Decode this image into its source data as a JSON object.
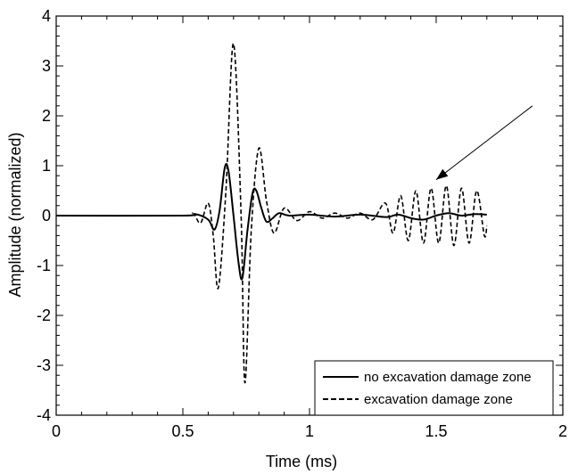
{
  "chart_data": {
    "type": "line",
    "xlabel": "Time (ms)",
    "ylabel": "Amplitude (normalized)",
    "xlim": [
      0,
      2
    ],
    "ylim": [
      -4,
      4
    ],
    "xticks": [
      0,
      0.5,
      1,
      1.5,
      2
    ],
    "xtick_labels": [
      "0",
      "0.5",
      "1",
      "1.5",
      "2"
    ],
    "yticks": [
      -4,
      -3,
      -2,
      -1,
      0,
      1,
      2,
      3,
      4
    ],
    "ytick_labels": [
      "-4",
      "-3",
      "-2",
      "-1",
      "0",
      "1",
      "2",
      "3",
      "4"
    ],
    "grid": false,
    "legend_position": "bottom-right",
    "series": [
      {
        "name": "no excavation damage zone",
        "style": "solid",
        "color": "#000000",
        "x": [
          0,
          0.5,
          0.55,
          0.6,
          0.625,
          0.645,
          0.665,
          0.68,
          0.7,
          0.72,
          0.735,
          0.755,
          0.775,
          0.79,
          0.81,
          0.83,
          0.855,
          0.88,
          0.92,
          1.0,
          1.1,
          1.2,
          1.3,
          1.35,
          1.4,
          1.45,
          1.5,
          1.55,
          1.6,
          1.65,
          1.7
        ],
        "y": [
          0,
          0,
          0.03,
          -0.08,
          -0.28,
          0.1,
          0.95,
          0.9,
          0.0,
          -0.95,
          -1.25,
          -0.3,
          0.45,
          0.5,
          0.15,
          -0.12,
          -0.05,
          0.05,
          0.0,
          0.02,
          -0.02,
          0.02,
          -0.03,
          0.02,
          -0.05,
          -0.08,
          0.0,
          0.05,
          0.0,
          0.03,
          0.02
        ]
      },
      {
        "name": "excavation damage zone",
        "style": "dashed",
        "color": "#000000",
        "x": [
          0,
          0.5,
          0.54,
          0.57,
          0.6,
          0.62,
          0.64,
          0.67,
          0.7,
          0.73,
          0.745,
          0.77,
          0.8,
          0.83,
          0.86,
          0.9,
          0.95,
          1.0,
          1.05,
          1.1,
          1.15,
          1.2,
          1.25,
          1.3,
          1.33,
          1.36,
          1.39,
          1.42,
          1.45,
          1.48,
          1.51,
          1.54,
          1.57,
          1.6,
          1.63,
          1.66,
          1.69,
          1.7
        ],
        "y": [
          0,
          0,
          0.05,
          -0.15,
          0.25,
          -0.4,
          -1.45,
          0.5,
          3.45,
          0.0,
          -3.35,
          -0.3,
          1.35,
          0.3,
          -0.35,
          0.15,
          -0.1,
          0.08,
          -0.05,
          0.05,
          -0.05,
          0.05,
          -0.08,
          0.25,
          -0.35,
          0.4,
          -0.5,
          0.5,
          -0.55,
          0.55,
          -0.55,
          0.6,
          -0.6,
          0.55,
          -0.55,
          0.5,
          -0.4,
          -0.2
        ]
      }
    ],
    "annotations": [
      {
        "type": "arrow",
        "from": [
          1.88,
          2.2
        ],
        "to": [
          1.5,
          0.72
        ]
      }
    ]
  }
}
